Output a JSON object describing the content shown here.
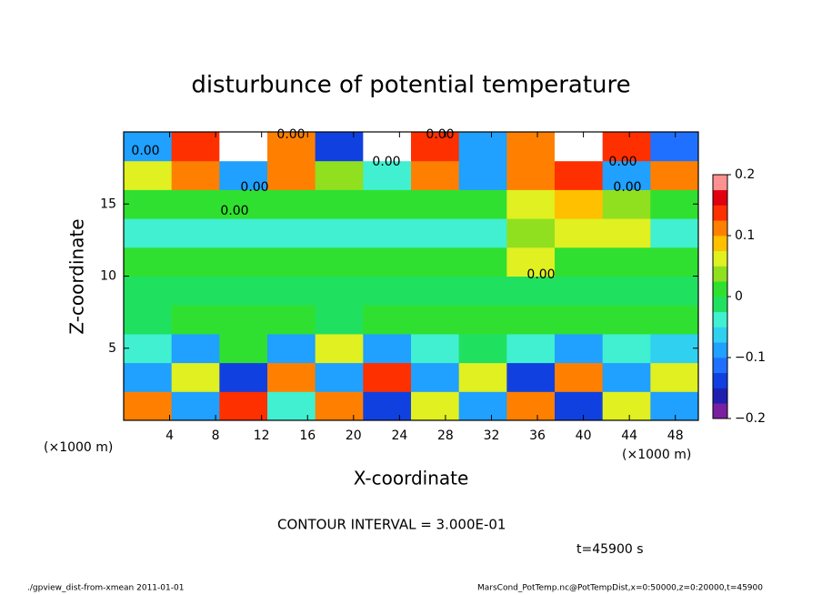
{
  "chart_data": {
    "type": "heatmap",
    "title": "disturbunce of potential temperature",
    "x_label": "X-coordinate",
    "y_label": "Z-coordinate",
    "x_unit_label": "(×1000 m)",
    "x_unit_label_right": "(×1000 m)",
    "xlim": [
      0,
      50
    ],
    "ylim": [
      0,
      20
    ],
    "xticks": [
      4,
      8,
      12,
      16,
      20,
      24,
      28,
      32,
      36,
      40,
      44,
      48
    ],
    "yticks": [
      5,
      10,
      15
    ],
    "z": [
      [
        0.1,
        -0.1,
        0.15,
        -0.05,
        0.1,
        -0.15,
        0.05,
        -0.1,
        0.1,
        -0.15,
        0.05,
        -0.1
      ],
      [
        -0.1,
        0.05,
        -0.15,
        0.1,
        -0.1,
        0.15,
        -0.1,
        0.05,
        -0.15,
        0.1,
        -0.1,
        0.05
      ],
      [
        -0.05,
        -0.1,
        0.02,
        -0.08,
        0.05,
        -0.1,
        -0.05,
        -0.02,
        -0.03,
        -0.1,
        -0.05,
        -0.06
      ],
      [
        -0.01,
        0,
        0.01,
        0,
        -0.01,
        0,
        0,
        0.01,
        0,
        0.01,
        0,
        0
      ],
      [
        -0.02,
        -0.01,
        -0.02,
        -0.01,
        -0.02,
        -0.01,
        -0.02,
        -0.01,
        -0.02,
        -0.02,
        -0.01,
        -0.02
      ],
      [
        0.01,
        0,
        0.01,
        0,
        0,
        0.01,
        0,
        0.02,
        0.05,
        0.01,
        0,
        0.01
      ],
      [
        -0.04,
        -0.05,
        -0.04,
        -0.05,
        -0.04,
        -0.05,
        -0.04,
        -0.05,
        0.03,
        0.06,
        0.05,
        -0.04
      ],
      [
        0,
        0.01,
        0,
        0.01,
        0,
        0,
        0.01,
        0,
        0.05,
        0.08,
        0.03,
        0
      ],
      [
        0.05,
        0.1,
        -0.08,
        0.12,
        0.04,
        -0.05,
        0.1,
        -0.1,
        0.12,
        0.15,
        -0.1,
        0.1
      ],
      [
        -0.1,
        0.15,
        0.2,
        0.1,
        -0.15,
        0.2,
        0.15,
        -0.1,
        0.1,
        0.2,
        0.15,
        -0.12
      ]
    ],
    "colorbar_lim": [
      -0.2,
      0.2
    ],
    "colorbar_ticks": [
      {
        "value": -0.2,
        "label": "−0.2"
      },
      {
        "value": -0.1,
        "label": "−0.1"
      },
      0,
      0.1,
      0.2
    ],
    "colors": [
      "#7a1fa0",
      "#2020b0",
      "#1040e0",
      "#2070ff",
      "#20a0ff",
      "#30d0f0",
      "#40f0d0",
      "#20e060",
      "#30e030",
      "#90e020",
      "#e0f020",
      "#ffc000",
      "#ff8000",
      "#ff3000",
      "#e00010",
      "#ff9090"
    ],
    "contour_labels": [
      "0.00",
      "0.00",
      "0.00",
      "0.00",
      "0.00",
      "0.00",
      "0.00",
      "0.00",
      "0.00"
    ],
    "contour_interval": "CONTOUR INTERVAL = 3.000E-01",
    "time_label": "t=45900 s",
    "footer_left": "./gpview_dist-from-xmean  2011-01-01",
    "footer_right": "MarsCond_PotTemp.nc@PotTempDist,x=0:50000,z=0:20000,t=45900"
  }
}
